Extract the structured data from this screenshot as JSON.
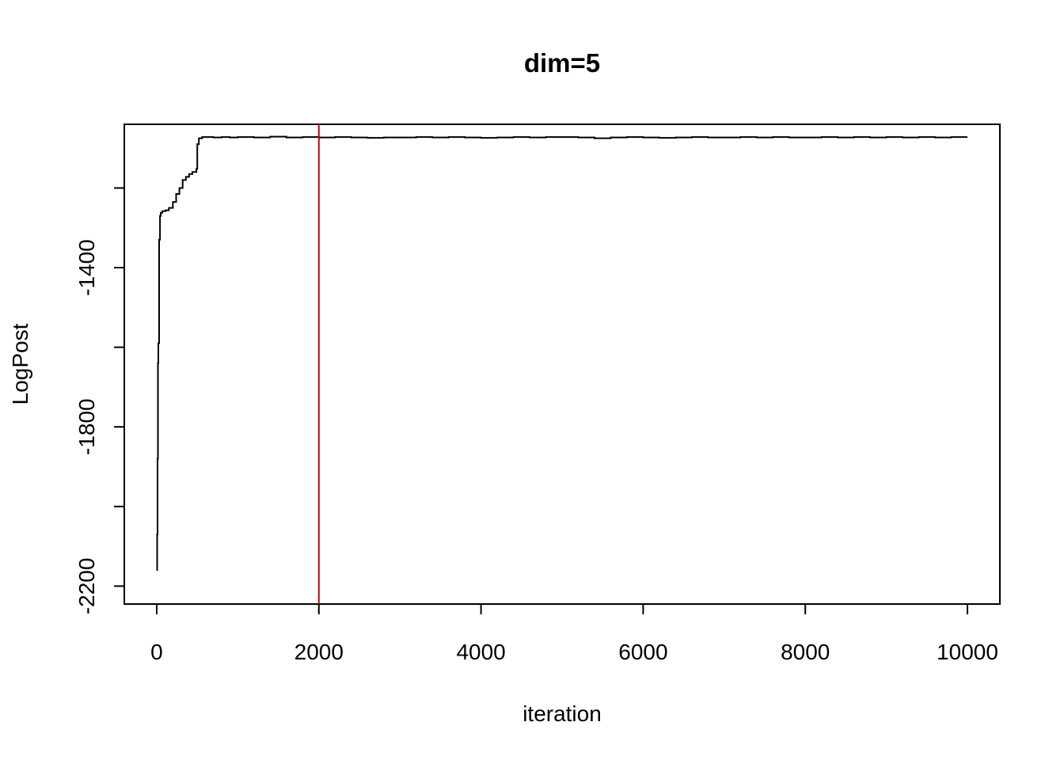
{
  "chart_data": {
    "type": "line",
    "title": "dim=5",
    "xlabel": "iteration",
    "ylabel": "LogPost",
    "xlim": [
      -400,
      10400
    ],
    "ylim": [
      -2245,
      -1040
    ],
    "x_ticks": [
      0,
      2000,
      4000,
      6000,
      8000,
      10000
    ],
    "x_tick_labels": [
      "0",
      "2000",
      "4000",
      "6000",
      "8000",
      "10000"
    ],
    "y_ticks": [
      -2200,
      -1800,
      -1400
    ],
    "y_tick_labels": [
      "-2200",
      "-1800",
      "-1400"
    ],
    "grid": false,
    "legend": "none",
    "series": [
      {
        "color": "#000000",
        "x": [
          0,
          5,
          10,
          15,
          20,
          25,
          30,
          40,
          50,
          70,
          90,
          110,
          150,
          200,
          240,
          280,
          320,
          360,
          400,
          440,
          490,
          500,
          520,
          560,
          600,
          700,
          800,
          900,
          1000,
          1200,
          1400,
          1600,
          1800,
          2000,
          2200,
          2400,
          2600,
          2800,
          3000,
          3200,
          3400,
          3600,
          3800,
          4000,
          4200,
          4400,
          4600,
          4800,
          5000,
          5200,
          5400,
          5600,
          5800,
          6000,
          6200,
          6400,
          6600,
          6800,
          7000,
          7200,
          7400,
          7600,
          7800,
          8000,
          8200,
          8400,
          8600,
          8800,
          9000,
          9200,
          9400,
          9600,
          9800,
          10000
        ],
        "y": [
          -2160,
          -2070,
          -1880,
          -1640,
          -1590,
          -1590,
          -1330,
          -1270,
          -1262,
          -1258,
          -1258,
          -1256,
          -1250,
          -1235,
          -1215,
          -1200,
          -1180,
          -1172,
          -1165,
          -1160,
          -1152,
          -1090,
          -1075,
          -1072,
          -1072,
          -1073,
          -1072,
          -1073,
          -1072,
          -1073,
          -1071,
          -1073,
          -1072,
          -1073,
          -1072,
          -1073,
          -1074,
          -1073,
          -1073,
          -1072,
          -1073,
          -1072,
          -1073,
          -1074,
          -1073,
          -1072,
          -1073,
          -1072,
          -1072,
          -1073,
          -1075,
          -1073,
          -1072,
          -1073,
          -1074,
          -1073,
          -1072,
          -1073,
          -1073,
          -1072,
          -1073,
          -1072,
          -1073,
          -1073,
          -1072,
          -1073,
          -1072,
          -1073,
          -1072,
          -1073,
          -1072,
          -1073,
          -1072,
          -1072
        ]
      }
    ],
    "reference_lines": [
      {
        "orientation": "vertical",
        "x": 2000,
        "color": "#cc0000"
      }
    ]
  }
}
